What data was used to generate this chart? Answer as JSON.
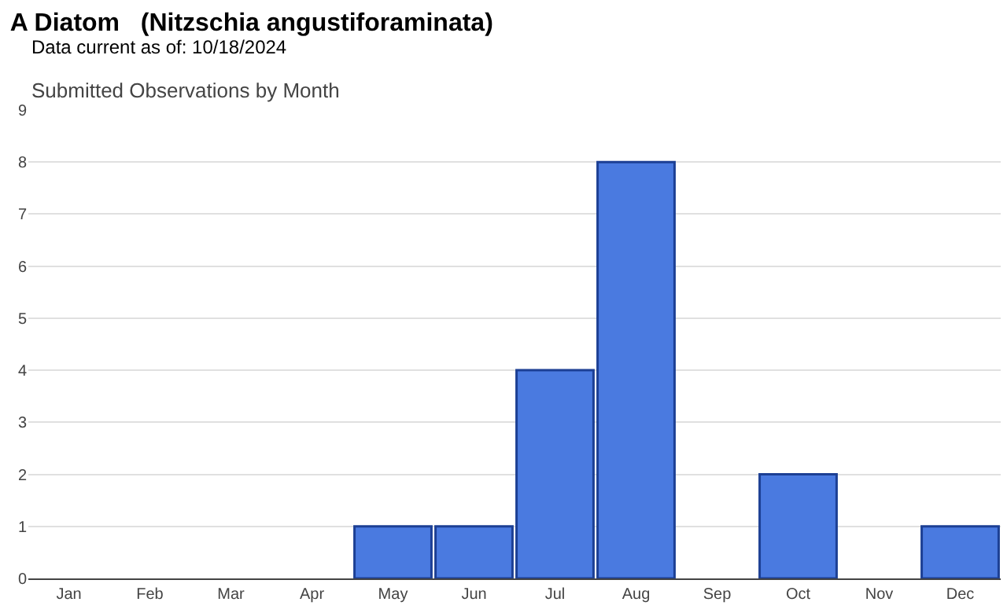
{
  "chart_data": {
    "type": "bar",
    "title": "A Diatom   (Nitzschia angustiforaminata)",
    "subtitle": "Data current as of: 10/18/2024",
    "annotations": [
      "Submitted Observations by Month"
    ],
    "categories": [
      "Jan",
      "Feb",
      "Mar",
      "Apr",
      "May",
      "Jun",
      "Jul",
      "Aug",
      "Sep",
      "Oct",
      "Nov",
      "Dec"
    ],
    "values": [
      0,
      0,
      0,
      0,
      1,
      1,
      4,
      8,
      0,
      2,
      0,
      1
    ],
    "color": "#4a7ae0",
    "ylim": [
      0,
      9
    ],
    "yticks": [
      0,
      1,
      2,
      3,
      4,
      5,
      6,
      7,
      8,
      9
    ],
    "grid": "y"
  }
}
